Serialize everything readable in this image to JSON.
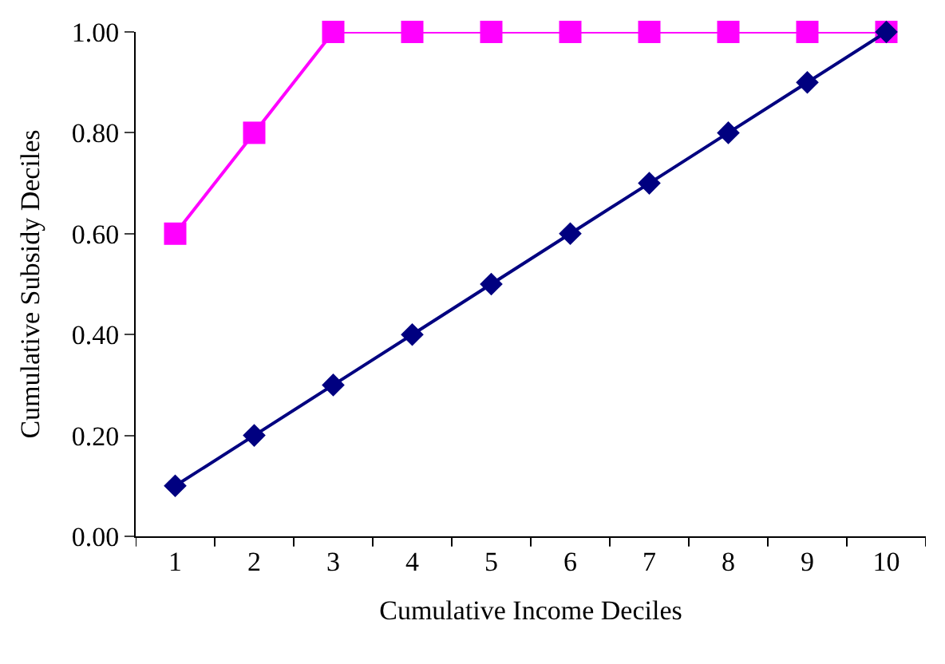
{
  "chart_data": {
    "type": "line",
    "xlabel": "Cumulative Income Deciles",
    "ylabel": "Cumulative Subsidy Deciles",
    "categories": [
      "1",
      "2",
      "3",
      "4",
      "5",
      "6",
      "7",
      "8",
      "9",
      "10"
    ],
    "series": [
      {
        "color": "#ff00ff",
        "marker": "square",
        "values": [
          0.6,
          0.8,
          1.0,
          1.0,
          1.0,
          1.0,
          1.0,
          1.0,
          1.0,
          1.0
        ]
      },
      {
        "color": "#000080",
        "marker": "diamond",
        "values": [
          0.1,
          0.2,
          0.3,
          0.4,
          0.5,
          0.6,
          0.7,
          0.8,
          0.9,
          1.0
        ]
      }
    ],
    "ylim": [
      0,
      1.0
    ],
    "yticks": [
      {
        "value": 0,
        "label": "0.00"
      },
      {
        "value": 0.2,
        "label": "0.20"
      },
      {
        "value": 0.4,
        "label": "0.40"
      },
      {
        "value": 0.6,
        "label": "0.60"
      },
      {
        "value": 0.8,
        "label": "0.80"
      },
      {
        "value": 1.0,
        "label": "1.00"
      }
    ],
    "line_style": "solid"
  }
}
